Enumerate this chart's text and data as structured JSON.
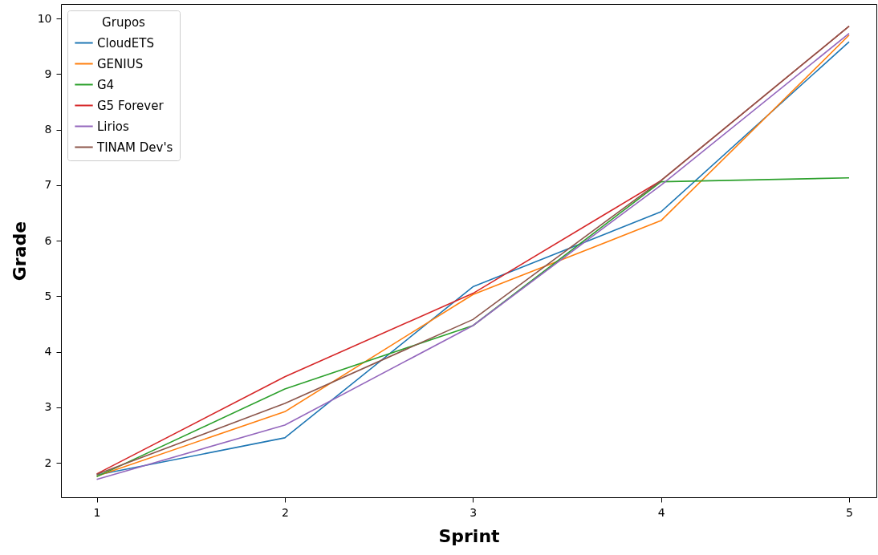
{
  "chart_data": {
    "type": "line",
    "xlabel": "Sprint",
    "ylabel": "Grade",
    "legend_title": "Grupos",
    "legend": "top left",
    "grid": false,
    "x": [
      1,
      2,
      3,
      4,
      5
    ],
    "xlim": [
      0.81,
      5.145
    ],
    "xticks": [
      1,
      2,
      3,
      4,
      5
    ],
    "ylim": [
      1.38,
      10.26
    ],
    "yticks": [
      2,
      3,
      4,
      5,
      6,
      7,
      8,
      9,
      10
    ],
    "series": [
      {
        "name": "CloudETS",
        "color": "#1f77b4",
        "values": [
          1.78,
          2.45,
          5.17,
          6.52,
          9.58
        ]
      },
      {
        "name": "GENIUS",
        "color": "#ff7f0e",
        "values": [
          1.76,
          2.92,
          5.03,
          6.36,
          9.7
        ]
      },
      {
        "name": "G4",
        "color": "#2ca02c",
        "values": [
          1.75,
          3.33,
          4.47,
          7.06,
          7.13
        ]
      },
      {
        "name": "G5 Forever",
        "color": "#d62728",
        "values": [
          1.8,
          3.55,
          5.05,
          7.08,
          9.86
        ]
      },
      {
        "name": "Lirios",
        "color": "#9467bd",
        "values": [
          1.7,
          2.68,
          4.47,
          7.0,
          9.73
        ]
      },
      {
        "name": "TINAM Dev's",
        "color": "#8c564b",
        "values": [
          1.79,
          3.07,
          4.58,
          7.08,
          9.86
        ]
      }
    ]
  }
}
